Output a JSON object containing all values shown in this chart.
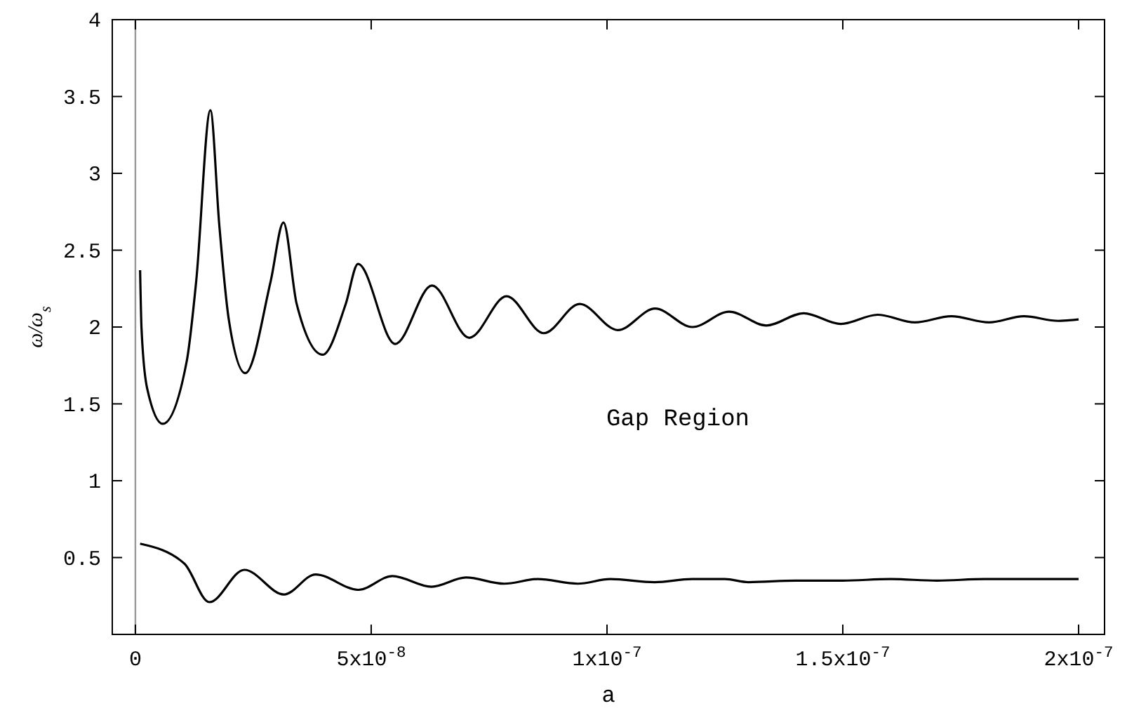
{
  "chart_data": {
    "type": "line",
    "xlabel": "a",
    "ylabel": "ω/ω$_{s}$",
    "xlim": [
      -4.9e-09,
      2.055e-07
    ],
    "ylim": [
      0,
      4
    ],
    "xticks": [
      0,
      {
        "value": 5e-08,
        "label": "5x10$^{-8}$"
      },
      {
        "value": 1e-07,
        "label": "1x10$^{-7}$"
      },
      {
        "value": 1.5e-07,
        "label": "1.5x10$^{-7}$"
      },
      {
        "value": 2e-07,
        "label": "2x10$^{-7}$"
      }
    ],
    "yticks": [
      0.5,
      1,
      1.5,
      2,
      2.5,
      3,
      3.5,
      4
    ],
    "grid": false,
    "marker": "none",
    "line_style": "solid",
    "ref_lines": [
      {
        "axis": "x",
        "value": 0,
        "color": "#999999"
      }
    ],
    "annotations": [
      "Gap Region"
    ],
    "series": [
      {
        "color": "#000000",
        "x": [
          1e-09,
          1.3e-09,
          2.5e-09,
          5.8e-09,
          1.09e-08,
          1.29e-08,
          1.59e-08,
          1.78e-08,
          1.98e-08,
          2.33e-08,
          2.87e-08,
          3.14e-08,
          3.42e-08,
          3.97e-08,
          4.46e-08,
          4.72e-08,
          5.51e-08,
          6.29e-08,
          7.08e-08,
          7.87e-08,
          8.66e-08,
          9.42e-08,
          1.023e-07,
          1.102e-07,
          1.181e-07,
          1.259e-07,
          1.338e-07,
          1.417e-07,
          1.496e-07,
          1.574e-07,
          1.653e-07,
          1.73e-07,
          1.81e-07,
          1.884e-07,
          1.957e-07,
          2e-07
        ],
        "values": [
          2.37,
          1.99,
          1.6,
          1.37,
          1.78,
          2.3,
          3.41,
          2.66,
          2.05,
          1.7,
          2.3,
          2.68,
          2.15,
          1.82,
          2.15,
          2.41,
          1.89,
          2.27,
          1.93,
          2.2,
          1.96,
          2.15,
          1.98,
          2.12,
          2.0,
          2.1,
          2.01,
          2.09,
          2.02,
          2.08,
          2.03,
          2.07,
          2.03,
          2.07,
          2.04,
          2.05
        ]
      },
      {
        "color": "#000000",
        "x": [
          1e-09,
          1.04e-08,
          1.57e-08,
          2.31e-08,
          3.15e-08,
          3.82e-08,
          4.73e-08,
          5.45e-08,
          6.28e-08,
          7.01e-08,
          7.82e-08,
          8.53e-08,
          9.38e-08,
          1.007e-07,
          1.101e-07,
          1.18e-07,
          1.25e-07,
          1.3e-07,
          1.4e-07,
          1.5e-07,
          1.6e-07,
          1.7e-07,
          1.8e-07,
          1.9e-07,
          2e-07
        ],
        "values": [
          0.59,
          0.46,
          0.21,
          0.42,
          0.26,
          0.39,
          0.29,
          0.38,
          0.31,
          0.37,
          0.33,
          0.36,
          0.33,
          0.36,
          0.34,
          0.36,
          0.36,
          0.34,
          0.35,
          0.35,
          0.36,
          0.35,
          0.36,
          0.36,
          0.36
        ]
      }
    ]
  }
}
